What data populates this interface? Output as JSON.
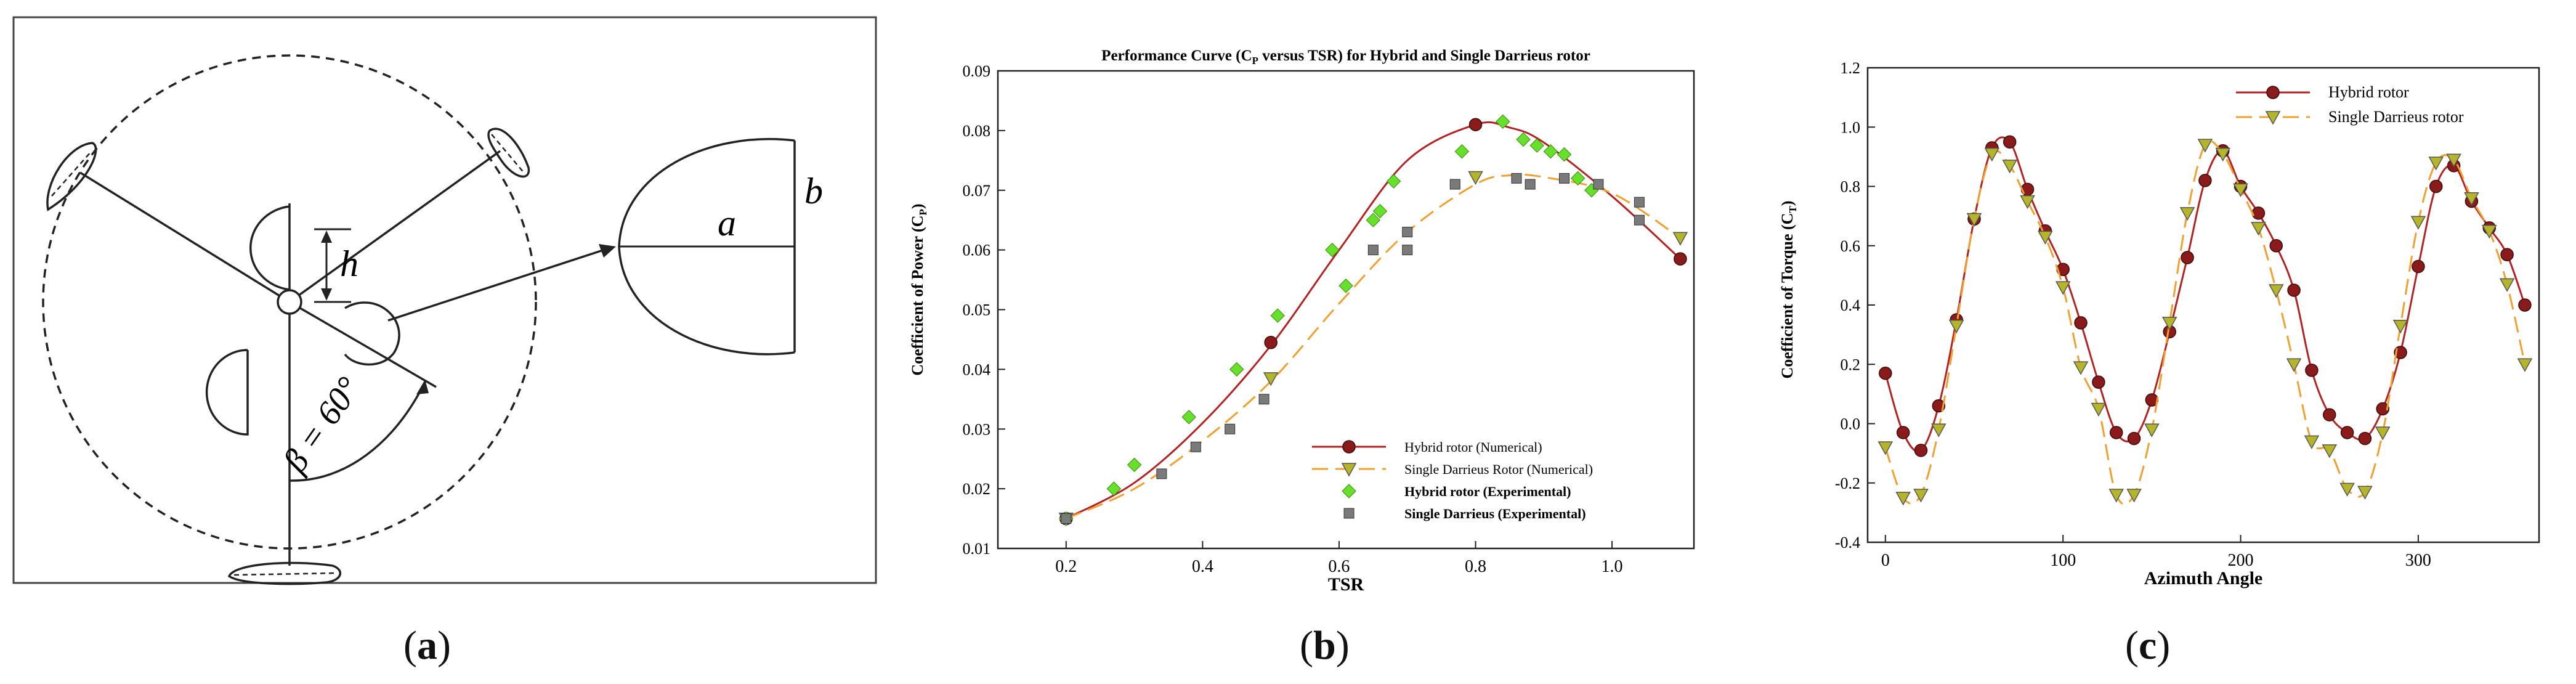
{
  "captions": {
    "a": "a",
    "b": "b",
    "c": "c"
  },
  "diagram": {
    "label_h": "h",
    "label_beta": "β = 60°",
    "label_a": "a",
    "label_b": "b"
  },
  "chart_data": [
    {
      "id": "b",
      "type": "line",
      "title": "Performance Curve (CP versus TSR) for Hybrid and Single Darrieus rotor",
      "title_main": "Performance Curve (C",
      "title_sub": "P",
      "title_rest": " versus TSR) for Hybrid and Single Darrieus rotor",
      "xlabel": "TSR",
      "ylabel": "Coefficient of Power (CP)",
      "ylabel_main": "Coefficient of Power (C",
      "ylabel_sub": "P",
      "ylabel_end": ")",
      "xlim": [
        0.1,
        1.12
      ],
      "ylim": [
        0.01,
        0.09
      ],
      "xticks": [
        0.2,
        0.4,
        0.6,
        0.8,
        1.0
      ],
      "xtick_labels": [
        "0.2",
        "0.4",
        "0.6",
        "0.8",
        "1.0"
      ],
      "yticks": [
        0.01,
        0.02,
        0.03,
        0.04,
        0.05,
        0.06,
        0.07,
        0.08,
        0.09
      ],
      "ytick_labels": [
        "0.01",
        "0.02",
        "0.03",
        "0.04",
        "0.05",
        "0.06",
        "0.07",
        "0.08",
        "0.09"
      ],
      "legend_position": "lower-right",
      "series": [
        {
          "name": "Hybrid rotor (Numerical)",
          "style": "line-circle",
          "color": "#b22222",
          "marker_color": "#8b1a1a",
          "curve_x": [
            0.2,
            0.3,
            0.4,
            0.5,
            0.6,
            0.7,
            0.8,
            0.85,
            0.9,
            1.0,
            1.1
          ],
          "curve_y": [
            0.015,
            0.021,
            0.031,
            0.044,
            0.06,
            0.075,
            0.081,
            0.0805,
            0.078,
            0.069,
            0.0585
          ],
          "marker_x": [
            0.2,
            0.5,
            0.8,
            1.1
          ],
          "marker_y": [
            0.015,
            0.0445,
            0.081,
            0.0585
          ]
        },
        {
          "name": "Single Darrieus Rotor (Numerical)",
          "style": "dash-triangle",
          "color": "#f0a030",
          "marker_color": "#b5b52a",
          "curve_x": [
            0.2,
            0.3,
            0.4,
            0.5,
            0.6,
            0.7,
            0.8,
            0.85,
            0.9,
            1.0,
            1.1
          ],
          "curve_y": [
            0.015,
            0.02,
            0.028,
            0.038,
            0.051,
            0.063,
            0.071,
            0.0725,
            0.0722,
            0.0695,
            0.062
          ],
          "marker_x": [
            0.2,
            0.5,
            0.8,
            1.1
          ],
          "marker_y": [
            0.015,
            0.0385,
            0.0722,
            0.062
          ]
        },
        {
          "name": "Hybrid rotor (Experimental)",
          "style": "diamond",
          "color": "#66e02a",
          "x": [
            0.2,
            0.27,
            0.3,
            0.38,
            0.45,
            0.51,
            0.59,
            0.61,
            0.65,
            0.66,
            0.68,
            0.78,
            0.84,
            0.87,
            0.89,
            0.91,
            0.93,
            0.95,
            0.97
          ],
          "y": [
            0.015,
            0.02,
            0.024,
            0.032,
            0.04,
            0.049,
            0.06,
            0.054,
            0.065,
            0.0665,
            0.0715,
            0.0765,
            0.0815,
            0.0785,
            0.0775,
            0.0765,
            0.076,
            0.072,
            0.07
          ]
        },
        {
          "name": "Single Darrieus (Experimental)",
          "style": "square",
          "color": "#7a7a7a",
          "x": [
            0.2,
            0.34,
            0.39,
            0.44,
            0.49,
            0.65,
            0.7,
            0.7,
            0.77,
            0.86,
            0.88,
            0.93,
            0.98,
            1.04,
            1.04
          ],
          "y": [
            0.015,
            0.0225,
            0.027,
            0.03,
            0.035,
            0.06,
            0.06,
            0.063,
            0.071,
            0.072,
            0.071,
            0.072,
            0.071,
            0.068,
            0.065
          ]
        }
      ]
    },
    {
      "id": "c",
      "type": "line",
      "title": "",
      "xlabel": "Azimuth Angle",
      "ylabel": "Coefficient of Torque (CT)",
      "ylabel_main": "Coefficient of Torque (C",
      "ylabel_sub": "T",
      "ylabel_end": ")",
      "xlim": [
        -10,
        368
      ],
      "ylim": [
        -0.4,
        1.2
      ],
      "xticks": [
        0,
        100,
        200,
        300
      ],
      "xtick_labels": [
        "0",
        "100",
        "200",
        "300"
      ],
      "yticks": [
        -0.4,
        -0.2,
        0.0,
        0.2,
        0.4,
        0.6,
        0.8,
        1.0,
        1.2
      ],
      "ytick_labels": [
        "-0.4",
        "-0.2",
        "0.0",
        "0.2",
        "0.4",
        "0.6",
        "0.8",
        "1.0",
        "1.2"
      ],
      "legend_position": "top-right",
      "series": [
        {
          "name": "Hybrid rotor",
          "style": "line-circle",
          "color": "#b22222",
          "marker_color": "#8b1a1a",
          "x": [
            0,
            10,
            20,
            30,
            40,
            50,
            60,
            70,
            80,
            90,
            100,
            110,
            120,
            130,
            140,
            150,
            160,
            170,
            180,
            190,
            200,
            210,
            220,
            230,
            240,
            250,
            260,
            270,
            280,
            290,
            300,
            310,
            320,
            330,
            340,
            350,
            360
          ],
          "y": [
            0.17,
            -0.03,
            -0.09,
            0.06,
            0.35,
            0.69,
            0.93,
            0.95,
            0.79,
            0.65,
            0.52,
            0.34,
            0.14,
            -0.03,
            -0.05,
            0.08,
            0.31,
            0.56,
            0.82,
            0.92,
            0.8,
            0.71,
            0.6,
            0.45,
            0.18,
            0.03,
            -0.03,
            -0.05,
            0.05,
            0.24,
            0.53,
            0.8,
            0.87,
            0.75,
            0.66,
            0.57,
            0.4
          ]
        },
        {
          "name": "Single Darrieus rotor",
          "style": "dash-triangle",
          "color": "#f0a030",
          "marker_color": "#b5b52a",
          "x": [
            0,
            10,
            20,
            30,
            40,
            50,
            60,
            70,
            80,
            90,
            100,
            110,
            120,
            130,
            140,
            150,
            160,
            170,
            180,
            190,
            200,
            210,
            220,
            230,
            240,
            250,
            260,
            270,
            280,
            290,
            300,
            310,
            320,
            330,
            340,
            350,
            360
          ],
          "y": [
            -0.08,
            -0.25,
            -0.24,
            -0.02,
            0.33,
            0.69,
            0.91,
            0.87,
            0.75,
            0.63,
            0.46,
            0.19,
            0.05,
            -0.24,
            -0.24,
            -0.02,
            0.34,
            0.71,
            0.94,
            0.91,
            0.79,
            0.66,
            0.45,
            0.2,
            -0.06,
            -0.09,
            -0.22,
            -0.23,
            -0.03,
            0.33,
            0.68,
            0.88,
            0.89,
            0.76,
            0.65,
            0.47,
            0.2
          ]
        }
      ]
    }
  ]
}
